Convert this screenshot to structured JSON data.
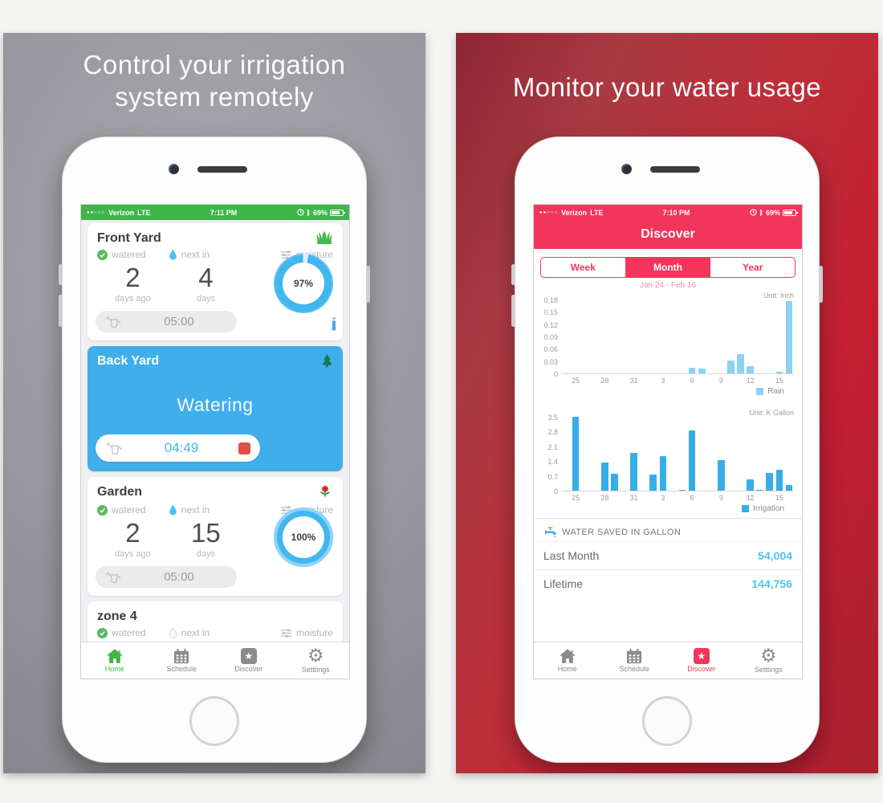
{
  "left_panel": {
    "headline_line1": "Control your irrigation",
    "headline_line2": "system remotely",
    "status_bar": {
      "signal": "●●○○○",
      "carrier": "Verizon",
      "network": "LTE",
      "time": "7:11 PM",
      "bluetooth": "ᛒ",
      "battery_pct": "69%"
    },
    "zones": {
      "front_yard": {
        "name": "Front Yard",
        "watered_label": "watered",
        "next_in_label": "next in",
        "moisture_label": "moisture",
        "last_watered_value": "2",
        "last_watered_unit": "days ago",
        "next_in_value": "4",
        "next_in_unit": "days",
        "moisture_value": "97%",
        "duration": "05:00"
      },
      "back_yard": {
        "name": "Back Yard",
        "status": "Watering",
        "remaining": "04:49"
      },
      "garden": {
        "name": "Garden",
        "watered_label": "watered",
        "next_in_label": "next in",
        "moisture_label": "moisture",
        "last_watered_value": "2",
        "last_watered_unit": "days ago",
        "next_in_value": "15",
        "next_in_unit": "days",
        "moisture_value": "100%",
        "duration": "05:00"
      },
      "zone4": {
        "name": "zone 4",
        "watered_label": "watered",
        "next_in_label": "next in",
        "moisture_label": "moisture"
      }
    },
    "tab_bar": {
      "home": "Home",
      "schedule": "Schedule",
      "discover": "Discover",
      "settings": "Setttings"
    },
    "accent_green": "#3fb54a",
    "watering_blue": "#41aeec"
  },
  "right_panel": {
    "headline": "Monitor your water usage",
    "status_bar": {
      "signal": "●●○○○",
      "carrier": "Verizon",
      "network": "LTE",
      "time": "7:10 PM",
      "bluetooth": "ᛒ",
      "battery_pct": "69%"
    },
    "nav_title": "Discover",
    "segmented": {
      "week": "Week",
      "month": "Month",
      "year": "Year",
      "selected": "Month"
    },
    "date_range": "Jan 24 - Feb 16",
    "water_saved": {
      "title": "WATER SAVED IN GALLON",
      "rows": [
        {
          "label": "Last Month",
          "value": "54,004"
        },
        {
          "label": "Lifetime",
          "value": "144,756"
        }
      ]
    },
    "tab_bar": {
      "home": "Home",
      "schedule": "Schedule",
      "discover": "Discover",
      "settings": "Setttings"
    },
    "accent_red": "#f2365b"
  },
  "chart_data": [
    {
      "type": "bar",
      "unit_label": "Unit: Inch",
      "legend": "Rain",
      "bar_color": "#8dd0f5",
      "x": [
        "Jan 24",
        "Jan 25",
        "Jan 26",
        "Jan 27",
        "Jan 28",
        "Jan 29",
        "Jan 30",
        "Jan 31",
        "Feb 1",
        "Feb 2",
        "Feb 3",
        "Feb 4",
        "Feb 5",
        "Feb 6",
        "Feb 7",
        "Feb 8",
        "Feb 9",
        "Feb 10",
        "Feb 11",
        "Feb 12",
        "Feb 13",
        "Feb 14",
        "Feb 15",
        "Feb 16"
      ],
      "values": [
        0,
        0,
        0,
        0,
        0,
        0,
        0,
        0,
        0,
        0,
        0,
        0,
        0,
        0.013,
        0.011,
        0,
        0,
        0.032,
        0.048,
        0.018,
        0,
        0,
        0.003,
        0.178
      ],
      "xticks": [
        {
          "i": 1,
          "label": "25"
        },
        {
          "i": 4,
          "label": "28"
        },
        {
          "i": 7,
          "label": "31"
        },
        {
          "i": 10,
          "label": "3"
        },
        {
          "i": 13,
          "label": "6"
        },
        {
          "i": 16,
          "label": "9"
        },
        {
          "i": 19,
          "label": "12"
        },
        {
          "i": 22,
          "label": "15"
        }
      ],
      "yticks": [
        "0",
        "0.03",
        "0.06",
        "0.09",
        "0.12",
        "0.15",
        "0.18"
      ],
      "ylim": [
        0,
        0.18
      ],
      "grid": false,
      "legend_position": "bottom-right"
    },
    {
      "type": "bar",
      "unit_label": "Unit: K Gallon",
      "legend": "Irrigation",
      "bar_color": "#36ade8",
      "x": [
        "Jan 24",
        "Jan 25",
        "Jan 26",
        "Jan 27",
        "Jan 28",
        "Jan 29",
        "Jan 30",
        "Jan 31",
        "Feb 1",
        "Feb 2",
        "Feb 3",
        "Feb 4",
        "Feb 5",
        "Feb 6",
        "Feb 7",
        "Feb 8",
        "Feb 9",
        "Feb 10",
        "Feb 11",
        "Feb 12",
        "Feb 13",
        "Feb 14",
        "Feb 15",
        "Feb 16"
      ],
      "values": [
        0,
        3.55,
        0,
        0,
        1.33,
        0.8,
        0,
        1.8,
        0,
        0.77,
        1.65,
        0,
        0.05,
        2.9,
        0,
        0,
        1.45,
        0,
        0,
        0.55,
        0.05,
        0.85,
        1.0,
        0.28
      ],
      "xticks": [
        {
          "i": 1,
          "label": "25"
        },
        {
          "i": 4,
          "label": "28"
        },
        {
          "i": 7,
          "label": "31"
        },
        {
          "i": 10,
          "label": "3"
        },
        {
          "i": 13,
          "label": "6"
        },
        {
          "i": 16,
          "label": "9"
        },
        {
          "i": 19,
          "label": "12"
        },
        {
          "i": 22,
          "label": "15"
        }
      ],
      "yticks": [
        "0",
        "0.7",
        "1.4",
        "2.1",
        "2.8",
        "3.5"
      ],
      "ylim": [
        0,
        3.5
      ],
      "grid": false,
      "legend_position": "bottom-right"
    }
  ]
}
